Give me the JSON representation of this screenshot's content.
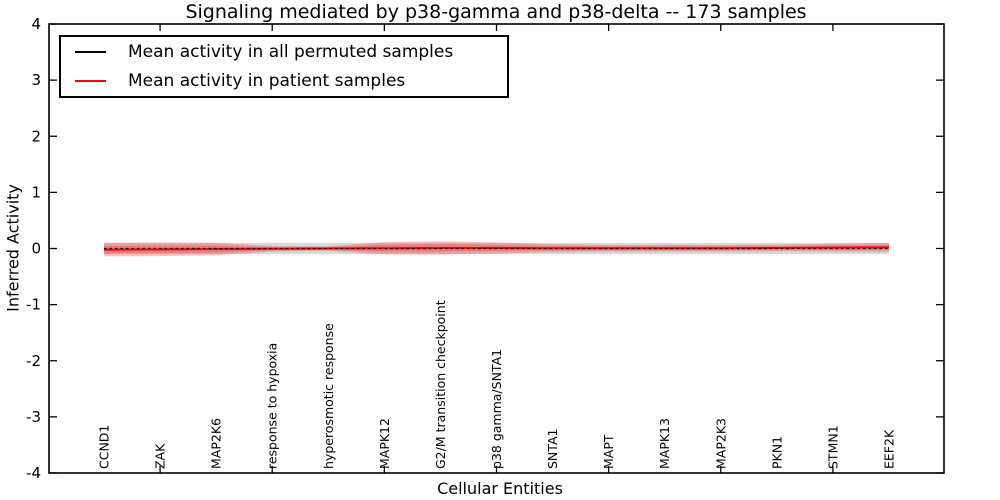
{
  "title": "Signaling mediated by p38-gamma and p38-delta -- 173 samples",
  "legend": {
    "items": [
      {
        "label": "Mean activity in all permuted samples",
        "color": "#000000"
      },
      {
        "label": "Mean activity in patient samples",
        "color": "#ff0000"
      }
    ]
  },
  "chart_data": {
    "type": "line",
    "title": "Signaling mediated by p38-gamma and p38-delta -- 173 samples",
    "xlabel": "Cellular Entities",
    "ylabel": "Inferred Activity",
    "ylim": [
      -4,
      4
    ],
    "yticks": [
      -4,
      -3,
      -2,
      -1,
      0,
      1,
      2,
      3,
      4
    ],
    "grid": false,
    "legend_position": "upper left",
    "categories": [
      "CCND1",
      "ZAK",
      "MAP2K6",
      "response to hypoxia",
      "hyperosmotic response",
      "MAPK12",
      "G2/M transition checkpoint",
      "p38 gamma/SNTA1",
      "SNTA1",
      "MAPT",
      "MAPK13",
      "MAP2K3",
      "PKN1",
      "STMN1",
      "EEF2K"
    ],
    "series": [
      {
        "name": "Mean activity in all permuted samples",
        "line_color": "#000000",
        "band_color": "rgba(0,0,0,0.15)",
        "mean": [
          0,
          0,
          0,
          0,
          0,
          0,
          0,
          0,
          0,
          0,
          0,
          0,
          0,
          0,
          0
        ],
        "std": [
          0.1,
          0.1,
          0.1,
          0.1,
          0.1,
          0.1,
          0.1,
          0.1,
          0.1,
          0.1,
          0.1,
          0.1,
          0.1,
          0.1,
          0.1
        ]
      },
      {
        "name": "Mean activity in patient samples",
        "line_color": "#ff0000",
        "band_color": "rgba(255,0,0,0.24)",
        "mean": [
          -0.02,
          -0.015,
          -0.01,
          -0.005,
          0,
          0.005,
          0.01,
          0.01,
          0.005,
          0.005,
          0.005,
          0.005,
          0.01,
          0.015,
          0.02
        ],
        "std": [
          0.12,
          0.12,
          0.11,
          0.05,
          0.04,
          0.11,
          0.12,
          0.1,
          0.07,
          0.06,
          0.06,
          0.06,
          0.06,
          0.07,
          0.08
        ]
      }
    ]
  }
}
